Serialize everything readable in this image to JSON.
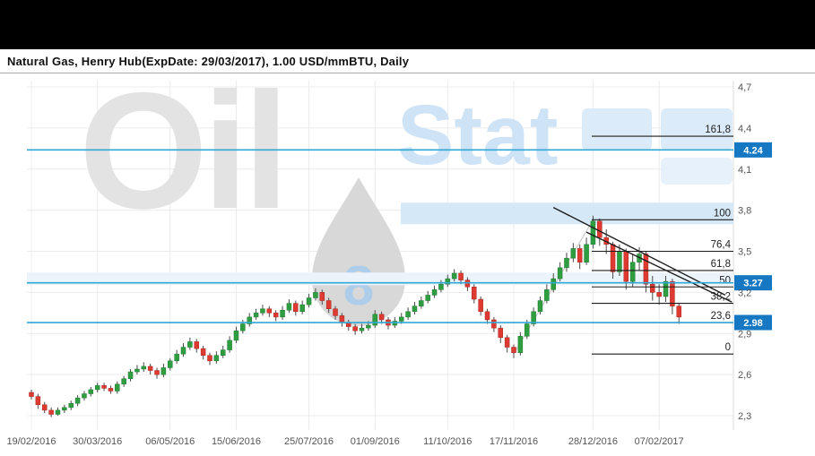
{
  "header": {
    "title": "Natural Gas, Henry Hub(ExpDate: 29/03/2017), 1.00 USD/mmBTU, Daily"
  },
  "watermark": {
    "oil": "Oil",
    "stat": "Stat",
    "eight": "8"
  },
  "axis": {
    "y_labels": [
      "4,7",
      "4,4",
      "4,1",
      "3,8",
      "3,5",
      "3,2",
      "2,9",
      "2,6",
      "2,3"
    ],
    "y_values": [
      4.7,
      4.4,
      4.1,
      3.8,
      3.5,
      3.2,
      2.9,
      2.6,
      2.3
    ],
    "x_labels": [
      "19/02/2016",
      "30/03/2016",
      "06/05/2016",
      "15/06/2016",
      "25/07/2016",
      "01/09/2016",
      "11/10/2016",
      "17/11/2016",
      "28/12/2016",
      "07/02/2017"
    ],
    "x_indices": [
      0,
      10,
      21,
      31,
      42,
      52,
      63,
      73,
      85,
      95
    ]
  },
  "chart_data": {
    "type": "candlestick",
    "title": "Natural Gas, Henry Hub(ExpDate: 29/03/2017), 1.00 USD/mmBTU, Daily",
    "interval": "Daily",
    "ylim": [
      2.3,
      4.7
    ],
    "grid": true,
    "candles_ohlc": [
      [
        2.47,
        2.49,
        2.42,
        2.44
      ],
      [
        2.44,
        2.46,
        2.35,
        2.38
      ],
      [
        2.38,
        2.4,
        2.32,
        2.34
      ],
      [
        2.34,
        2.36,
        2.29,
        2.31
      ],
      [
        2.31,
        2.36,
        2.3,
        2.34
      ],
      [
        2.34,
        2.38,
        2.32,
        2.36
      ],
      [
        2.36,
        2.41,
        2.34,
        2.39
      ],
      [
        2.39,
        2.45,
        2.37,
        2.43
      ],
      [
        2.43,
        2.48,
        2.41,
        2.46
      ],
      [
        2.46,
        2.51,
        2.44,
        2.49
      ],
      [
        2.49,
        2.54,
        2.47,
        2.52
      ],
      [
        2.52,
        2.54,
        2.48,
        2.5
      ],
      [
        2.5,
        2.52,
        2.46,
        2.48
      ],
      [
        2.48,
        2.55,
        2.46,
        2.53
      ],
      [
        2.53,
        2.59,
        2.51,
        2.57
      ],
      [
        2.57,
        2.64,
        2.55,
        2.62
      ],
      [
        2.62,
        2.67,
        2.6,
        2.64
      ],
      [
        2.64,
        2.69,
        2.62,
        2.66
      ],
      [
        2.66,
        2.68,
        2.6,
        2.63
      ],
      [
        2.63,
        2.65,
        2.57,
        2.6
      ],
      [
        2.6,
        2.68,
        2.58,
        2.65
      ],
      [
        2.65,
        2.72,
        2.63,
        2.7
      ],
      [
        2.7,
        2.78,
        2.68,
        2.75
      ],
      [
        2.75,
        2.83,
        2.73,
        2.8
      ],
      [
        2.8,
        2.87,
        2.78,
        2.84
      ],
      [
        2.84,
        2.86,
        2.76,
        2.79
      ],
      [
        2.79,
        2.81,
        2.71,
        2.74
      ],
      [
        2.74,
        2.76,
        2.67,
        2.7
      ],
      [
        2.7,
        2.77,
        2.68,
        2.74
      ],
      [
        2.74,
        2.81,
        2.72,
        2.78
      ],
      [
        2.78,
        2.88,
        2.76,
        2.85
      ],
      [
        2.85,
        2.95,
        2.83,
        2.92
      ],
      [
        2.92,
        3.0,
        2.9,
        2.97
      ],
      [
        2.97,
        3.05,
        2.95,
        3.02
      ],
      [
        3.02,
        3.08,
        3.0,
        3.05
      ],
      [
        3.05,
        3.11,
        3.03,
        3.08
      ],
      [
        3.08,
        3.1,
        3.02,
        3.05
      ],
      [
        3.05,
        3.07,
        2.99,
        3.02
      ],
      [
        3.02,
        3.1,
        3.0,
        3.07
      ],
      [
        3.07,
        3.15,
        3.05,
        3.12
      ],
      [
        3.12,
        3.14,
        3.03,
        3.06
      ],
      [
        3.06,
        3.14,
        3.04,
        3.11
      ],
      [
        3.11,
        3.19,
        3.09,
        3.16
      ],
      [
        3.16,
        3.23,
        3.14,
        3.2
      ],
      [
        3.2,
        3.22,
        3.11,
        3.14
      ],
      [
        3.14,
        3.16,
        3.05,
        3.08
      ],
      [
        3.08,
        3.1,
        3.0,
        3.03
      ],
      [
        3.03,
        3.05,
        2.95,
        2.98
      ],
      [
        2.98,
        3.0,
        2.92,
        2.95
      ],
      [
        2.95,
        2.97,
        2.89,
        2.92
      ],
      [
        2.92,
        2.97,
        2.9,
        2.94
      ],
      [
        2.94,
        2.99,
        2.92,
        2.96
      ],
      [
        2.96,
        3.07,
        2.94,
        3.04
      ],
      [
        3.04,
        3.06,
        2.97,
        3.0
      ],
      [
        3.0,
        3.02,
        2.93,
        2.96
      ],
      [
        2.96,
        3.02,
        2.94,
        2.99
      ],
      [
        2.99,
        3.05,
        2.97,
        3.02
      ],
      [
        3.02,
        3.09,
        3.0,
        3.06
      ],
      [
        3.06,
        3.13,
        3.04,
        3.1
      ],
      [
        3.1,
        3.17,
        3.08,
        3.14
      ],
      [
        3.14,
        3.21,
        3.12,
        3.18
      ],
      [
        3.18,
        3.25,
        3.16,
        3.22
      ],
      [
        3.22,
        3.29,
        3.2,
        3.26
      ],
      [
        3.26,
        3.33,
        3.24,
        3.3
      ],
      [
        3.3,
        3.37,
        3.28,
        3.34
      ],
      [
        3.34,
        3.36,
        3.26,
        3.29
      ],
      [
        3.29,
        3.31,
        3.21,
        3.24
      ],
      [
        3.24,
        3.26,
        3.12,
        3.15
      ],
      [
        3.15,
        3.17,
        3.03,
        3.06
      ],
      [
        3.06,
        3.08,
        2.97,
        3.0
      ],
      [
        3.0,
        3.02,
        2.91,
        2.94
      ],
      [
        2.94,
        2.96,
        2.83,
        2.87
      ],
      [
        2.87,
        2.89,
        2.76,
        2.8
      ],
      [
        2.8,
        2.82,
        2.72,
        2.76
      ],
      [
        2.76,
        2.91,
        2.74,
        2.88
      ],
      [
        2.88,
        3.0,
        2.86,
        2.97
      ],
      [
        2.97,
        3.09,
        2.95,
        3.06
      ],
      [
        3.06,
        3.17,
        3.04,
        3.14
      ],
      [
        3.14,
        3.26,
        3.12,
        3.22
      ],
      [
        3.22,
        3.34,
        3.2,
        3.3
      ],
      [
        3.3,
        3.42,
        3.28,
        3.38
      ],
      [
        3.38,
        3.49,
        3.35,
        3.45
      ],
      [
        3.45,
        3.56,
        3.42,
        3.52
      ],
      [
        3.52,
        3.55,
        3.37,
        3.42
      ],
      [
        3.42,
        3.6,
        3.4,
        3.55
      ],
      [
        3.55,
        3.76,
        3.52,
        3.72
      ],
      [
        3.72,
        3.74,
        3.54,
        3.6
      ],
      [
        3.6,
        3.66,
        3.48,
        3.55
      ],
      [
        3.55,
        3.57,
        3.3,
        3.35
      ],
      [
        3.35,
        3.55,
        3.32,
        3.5
      ],
      [
        3.5,
        3.52,
        3.22,
        3.28
      ],
      [
        3.28,
        3.48,
        3.24,
        3.42
      ],
      [
        3.42,
        3.53,
        3.36,
        3.48
      ],
      [
        3.48,
        3.5,
        3.2,
        3.26
      ],
      [
        3.26,
        3.32,
        3.14,
        3.2
      ],
      [
        3.2,
        3.26,
        3.11,
        3.17
      ],
      [
        3.17,
        3.32,
        3.13,
        3.28
      ],
      [
        3.28,
        3.3,
        3.04,
        3.1
      ],
      [
        3.1,
        3.12,
        2.97,
        3.02
      ]
    ],
    "fibonacci": {
      "levels": [
        {
          "label": "161,8",
          "price": 4.34
        },
        {
          "label": "100",
          "price": 3.73
        },
        {
          "label": "76,4",
          "price": 3.5
        },
        {
          "label": "61,8",
          "price": 3.36
        },
        {
          "label": "50",
          "price": 3.24
        },
        {
          "label": "38,2",
          "price": 3.12
        },
        {
          "label": "23,6",
          "price": 2.98
        },
        {
          "label": "0",
          "price": 2.75
        }
      ],
      "base": {
        "i1": 73,
        "p1": 2.75,
        "i2": 85,
        "p2": 3.73
      }
    },
    "horizontal_lines": [
      {
        "price": 4.24,
        "tag": "4.24"
      },
      {
        "price": 3.27,
        "tag": "3.27"
      },
      {
        "price": 2.98,
        "tag": "2.98"
      }
    ],
    "trendlines": [
      {
        "i1": 79,
        "p1": 3.82,
        "i2": 105,
        "p2": 3.18
      },
      {
        "i1": 84,
        "p1": 3.64,
        "i2": 106,
        "p2": 3.13
      }
    ],
    "colors": {
      "up": "#2f9e41",
      "down": "#de3a31",
      "wick": "#4a4a4a",
      "hline": "#2fa8d5",
      "tag_bg": "#1678c2",
      "tag_text": "#ffffff",
      "fib_line": "#1c1c1c",
      "trend_line": "#1c1c1c",
      "grid": "#ececec",
      "axis_text": "#555555",
      "band_100": "#d5e8f7",
      "band_50": "#ecf4fb",
      "watermark_gray": "#e3e3e3",
      "watermark_blue": "#cfe3f6",
      "watermark_block": "#dcebf9"
    }
  }
}
